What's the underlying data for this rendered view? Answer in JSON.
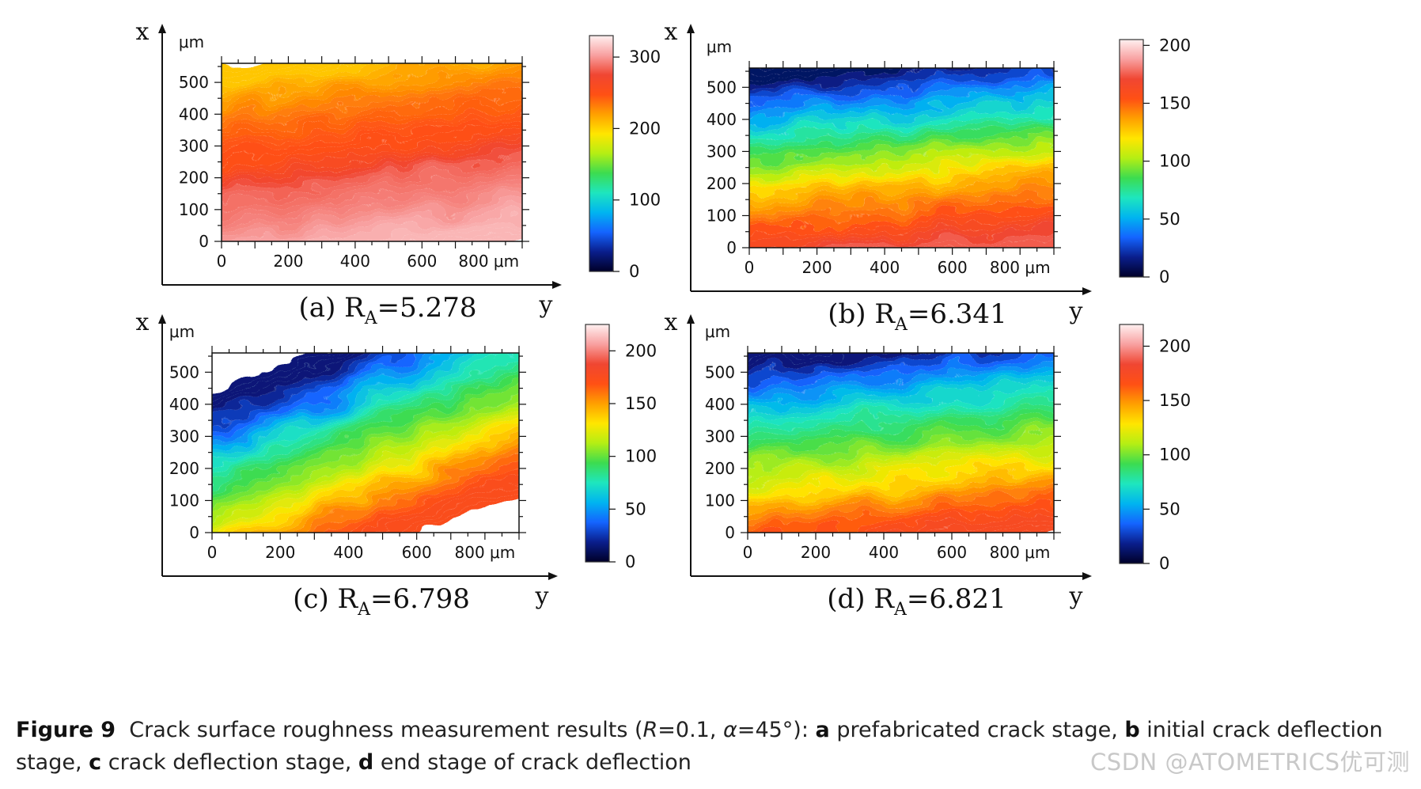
{
  "figure": {
    "caption_label": "Figure 9",
    "caption_intro": "Crack surface roughness measurement results (",
    "caption_R": "R",
    "caption_R_value": "=0.1, ",
    "caption_alpha": "α",
    "caption_alpha_value": "=45°): ",
    "parts": [
      {
        "letter": "a",
        "text": " prefabricated crack stage, "
      },
      {
        "letter": "b",
        "text": " initial crack deflection stage, "
      },
      {
        "letter": "c",
        "text": " crack deflection stage, "
      },
      {
        "letter": "d",
        "text": " end stage of crack deflection"
      }
    ],
    "watermark": "CSDN @ATOMETRICS优可测"
  },
  "colors": {
    "scale": [
      "#000028",
      "#0a1e8c",
      "#1464ff",
      "#00b4f0",
      "#1ee6be",
      "#3cdc50",
      "#b4ee14",
      "#ffe600",
      "#ffa000",
      "#ff5014",
      "#f04632",
      "#f8a0a0",
      "#fff0f0"
    ],
    "axis": "#111111"
  },
  "chart_data": [
    {
      "type": "heatmap",
      "id": "a",
      "panel_label": "(a) R",
      "subscript": "A",
      "ra_value": "=5.278",
      "xaxis_letter": "x",
      "yaxis_letter": "y",
      "unit": "μm",
      "x_unit_label": "800 μm",
      "ylabel": "x (μm)",
      "xlabel": "y (μm)",
      "x_ticks": [
        "0",
        "200",
        "400",
        "600"
      ],
      "y_ticks": [
        "0",
        "100",
        "200",
        "300",
        "400",
        "500"
      ],
      "xlim": [
        0,
        900
      ],
      "ylim": [
        0,
        560
      ],
      "colorbar_ticks": [
        "0",
        "100",
        "200",
        "300"
      ],
      "colorbar_range": [
        0,
        330
      ],
      "profile": {
        "y_at_x": [
          0,
          100,
          200,
          300,
          400,
          500,
          560
        ],
        "height_at_y": [
          310,
          295,
          285,
          250,
          240,
          220,
          205
        ]
      },
      "trend": "high (pink) at low x, red band near x=300-400, orange/yellow top"
    },
    {
      "type": "heatmap",
      "id": "b",
      "panel_label": "(b) R",
      "subscript": "A",
      "ra_value": "=6.341",
      "xaxis_letter": "x",
      "yaxis_letter": "y",
      "unit": "μm",
      "x_unit_label": "800 μm",
      "ylabel": "x (μm)",
      "xlabel": "y (μm)",
      "x_ticks": [
        "0",
        "200",
        "400",
        "600"
      ],
      "y_ticks": [
        "0",
        "100",
        "200",
        "300",
        "400",
        "500"
      ],
      "xlim": [
        0,
        900
      ],
      "ylim": [
        0,
        560
      ],
      "colorbar_ticks": [
        "0",
        "50",
        "100",
        "150",
        "200"
      ],
      "colorbar_range": [
        0,
        205
      ],
      "profile": {
        "y_at_x": [
          0,
          100,
          200,
          300,
          400,
          500,
          560
        ],
        "height_at_y": [
          175,
          150,
          130,
          95,
          65,
          30,
          10
        ]
      },
      "trend": "pink/red at bottom, yellow middle, cyan-blue top"
    },
    {
      "type": "heatmap",
      "id": "c",
      "panel_label": "(c) R",
      "subscript": "A",
      "ra_value": "=6.798",
      "xaxis_letter": "x",
      "yaxis_letter": "y",
      "unit": "μm",
      "x_unit_label": "800 μm",
      "ylabel": "x (μm)",
      "xlabel": "y (μm)",
      "x_ticks": [
        "0",
        "200",
        "400",
        "600"
      ],
      "y_ticks": [
        "0",
        "100",
        "200",
        "300",
        "400",
        "500"
      ],
      "xlim": [
        0,
        900
      ],
      "ylim": [
        0,
        560
      ],
      "colorbar_ticks": [
        "0",
        "50",
        "100",
        "150",
        "200"
      ],
      "colorbar_range": [
        0,
        225
      ],
      "profile": {
        "y_at_x": [
          0,
          100,
          200,
          300,
          400,
          500,
          560
        ],
        "height_at_y": [
          175,
          150,
          120,
          95,
          70,
          35,
          15
        ]
      },
      "trend": "pink/red bottom-right, yellow-green middle, blue top-left"
    },
    {
      "type": "heatmap",
      "id": "d",
      "panel_label": "(d) R",
      "subscript": "A",
      "ra_value": "=6.821",
      "xaxis_letter": "x",
      "yaxis_letter": "y",
      "unit": "μm",
      "x_unit_label": "800 μm",
      "ylabel": "x (μm)",
      "xlabel": "y (μm)",
      "x_ticks": [
        "0",
        "200",
        "400",
        "600"
      ],
      "y_ticks": [
        "0",
        "100",
        "200",
        "300",
        "400",
        "500"
      ],
      "xlim": [
        0,
        900
      ],
      "ylim": [
        0,
        560
      ],
      "colorbar_ticks": [
        "0",
        "50",
        "100",
        "150",
        "200"
      ],
      "colorbar_range": [
        0,
        220
      ],
      "profile": {
        "y_at_x": [
          0,
          100,
          200,
          300,
          400,
          500,
          560
        ],
        "height_at_y": [
          175,
          150,
          120,
          95,
          70,
          40,
          15
        ]
      },
      "trend": "pink/red at bottom, yellow middle, cyan/blue top"
    }
  ]
}
